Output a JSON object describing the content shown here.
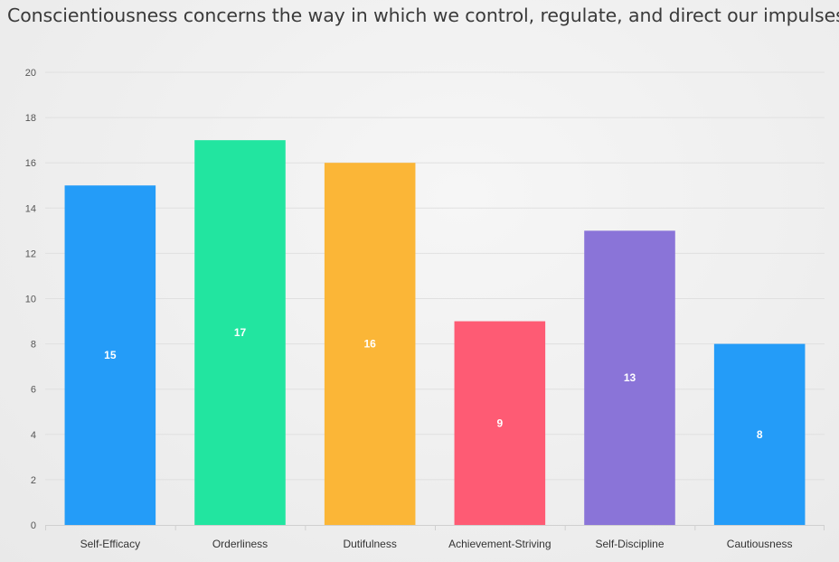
{
  "headline": "Conscientiousness concerns the way in which we control, regulate, and direct our impulses.",
  "chart_data": {
    "type": "bar",
    "categories": [
      "Self-Efficacy",
      "Orderliness",
      "Dutifulness",
      "Achievement-Striving",
      "Self-Discipline",
      "Cautiousness"
    ],
    "values": [
      15,
      17,
      16,
      9,
      13,
      8
    ],
    "colors": [
      "#249cf8",
      "#22e5a0",
      "#fbb637",
      "#fe5b74",
      "#8a74d8",
      "#249cf8"
    ],
    "ylim": [
      0,
      20
    ],
    "yticks": [
      0,
      2,
      4,
      6,
      8,
      10,
      12,
      14,
      16,
      18,
      20
    ],
    "grid": true,
    "data_labels": true,
    "title": "",
    "xlabel": "",
    "ylabel": ""
  }
}
